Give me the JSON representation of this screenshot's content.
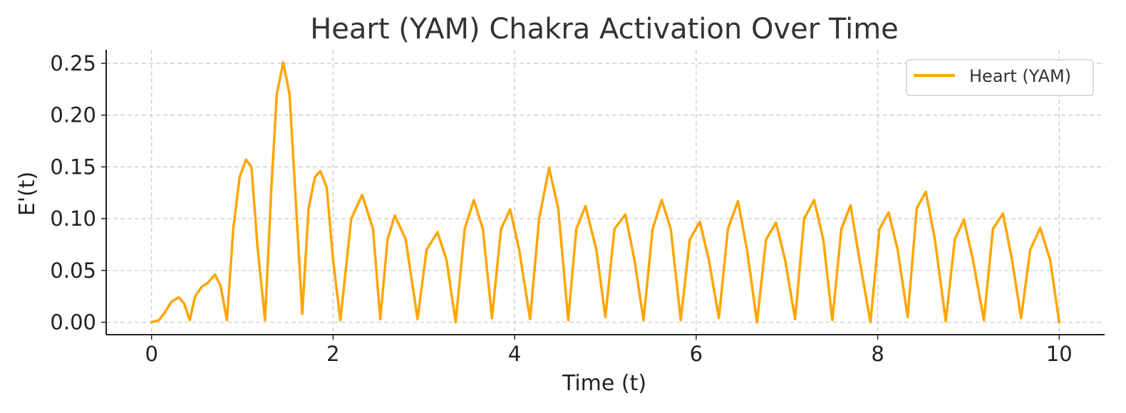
{
  "chart_data": {
    "type": "line",
    "title": "Heart (YAM) Chakra Activation Over Time",
    "xlabel": "Time (t)",
    "ylabel": "E'(t)",
    "xlim": [
      -0.5,
      10.5
    ],
    "ylim": [
      -0.012,
      0.263
    ],
    "xticks": [
      0,
      2,
      4,
      6,
      8,
      10
    ],
    "xtick_labels": [
      "0",
      "2",
      "4",
      "6",
      "8",
      "10"
    ],
    "yticks": [
      0.0,
      0.05,
      0.1,
      0.15,
      0.2,
      0.25
    ],
    "ytick_labels": [
      "0.00",
      "0.05",
      "0.10",
      "0.15",
      "0.20",
      "0.25"
    ],
    "grid": true,
    "legend_position": "top-right",
    "series": [
      {
        "name": "Heart (YAM)",
        "color": "#FFA500",
        "x": [
          0.0,
          0.08,
          0.15,
          0.22,
          0.3,
          0.36,
          0.42,
          0.48,
          0.55,
          0.62,
          0.7,
          0.76,
          0.83,
          0.9,
          0.97,
          1.04,
          1.1,
          1.17,
          1.25,
          1.32,
          1.38,
          1.45,
          1.52,
          1.6,
          1.66,
          1.73,
          1.8,
          1.86,
          1.93,
          2.0,
          2.08,
          2.2,
          2.32,
          2.44,
          2.52,
          2.6,
          2.68,
          2.8,
          2.93,
          3.03,
          3.15,
          3.25,
          3.35,
          3.45,
          3.55,
          3.65,
          3.75,
          3.85,
          3.95,
          4.05,
          4.17,
          4.27,
          4.38,
          4.48,
          4.59,
          4.68,
          4.78,
          4.9,
          5.0,
          5.1,
          5.22,
          5.32,
          5.42,
          5.52,
          5.62,
          5.72,
          5.83,
          5.93,
          6.04,
          6.14,
          6.25,
          6.35,
          6.46,
          6.56,
          6.67,
          6.77,
          6.88,
          6.98,
          7.09,
          7.19,
          7.3,
          7.4,
          7.5,
          7.6,
          7.7,
          7.8,
          7.92,
          8.02,
          8.12,
          8.22,
          8.33,
          8.43,
          8.53,
          8.63,
          8.75,
          8.85,
          8.95,
          9.05,
          9.17,
          9.27,
          9.38,
          9.48,
          9.58,
          9.68,
          9.79,
          9.9,
          10.0
        ],
        "y": [
          0.0,
          0.002,
          0.01,
          0.02,
          0.024,
          0.018,
          0.002,
          0.025,
          0.034,
          0.038,
          0.046,
          0.035,
          0.002,
          0.09,
          0.14,
          0.157,
          0.15,
          0.07,
          0.002,
          0.13,
          0.22,
          0.251,
          0.22,
          0.1,
          0.008,
          0.11,
          0.14,
          0.146,
          0.13,
          0.06,
          0.002,
          0.1,
          0.123,
          0.09,
          0.003,
          0.08,
          0.103,
          0.08,
          0.003,
          0.07,
          0.087,
          0.06,
          0.0,
          0.09,
          0.118,
          0.09,
          0.004,
          0.09,
          0.109,
          0.07,
          0.003,
          0.1,
          0.149,
          0.11,
          0.002,
          0.09,
          0.112,
          0.07,
          0.005,
          0.09,
          0.104,
          0.06,
          0.002,
          0.09,
          0.118,
          0.09,
          0.002,
          0.08,
          0.097,
          0.06,
          0.004,
          0.09,
          0.117,
          0.07,
          0.0,
          0.08,
          0.096,
          0.06,
          0.003,
          0.1,
          0.118,
          0.08,
          0.002,
          0.09,
          0.113,
          0.06,
          0.0,
          0.09,
          0.106,
          0.07,
          0.005,
          0.11,
          0.126,
          0.08,
          0.001,
          0.08,
          0.099,
          0.06,
          0.002,
          0.09,
          0.105,
          0.06,
          0.004,
          0.07,
          0.091,
          0.06,
          0.0
        ]
      }
    ]
  }
}
